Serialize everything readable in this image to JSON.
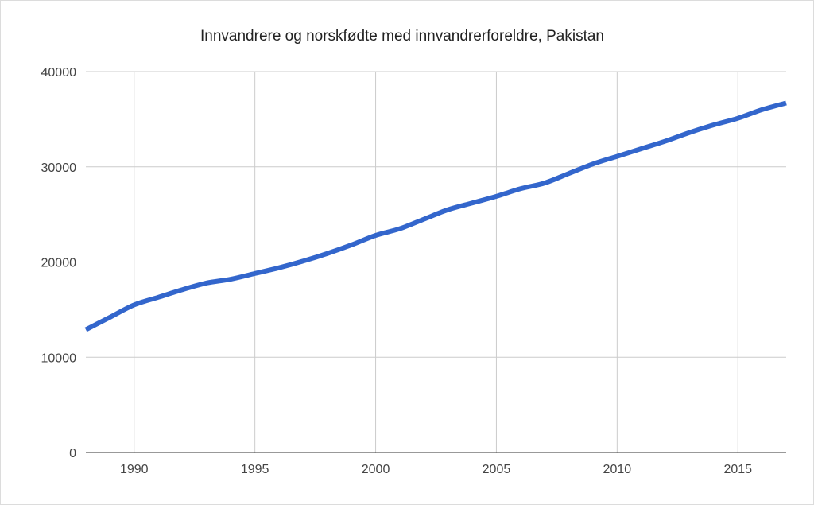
{
  "chart_data": {
    "type": "line",
    "title": "Innvandrere og norskfødte med innvandrerforeldre, Pakistan",
    "xlabel": "",
    "ylabel": "",
    "xlim": [
      1988,
      2017
    ],
    "ylim": [
      0,
      40000
    ],
    "x_ticks": [
      1990,
      1995,
      2000,
      2005,
      2010,
      2015
    ],
    "y_ticks": [
      0,
      10000,
      20000,
      30000,
      40000
    ],
    "grid": true,
    "legend": "none",
    "series": [
      {
        "color": "#3366cc",
        "x": [
          1988,
          1989,
          1990,
          1991,
          1992,
          1993,
          1994,
          1995,
          1996,
          1997,
          1998,
          1999,
          2000,
          2001,
          2002,
          2003,
          2004,
          2005,
          2006,
          2007,
          2008,
          2009,
          2010,
          2011,
          2012,
          2013,
          2014,
          2015,
          2016,
          2017
        ],
        "y": [
          12900,
          14200,
          15500,
          16300,
          17100,
          17800,
          18200,
          18800,
          19400,
          20100,
          20900,
          21800,
          22800,
          23500,
          24500,
          25500,
          26200,
          26900,
          27700,
          28300,
          29300,
          30300,
          31100,
          31900,
          32700,
          33600,
          34400,
          35100,
          36000,
          36700
        ]
      }
    ]
  }
}
